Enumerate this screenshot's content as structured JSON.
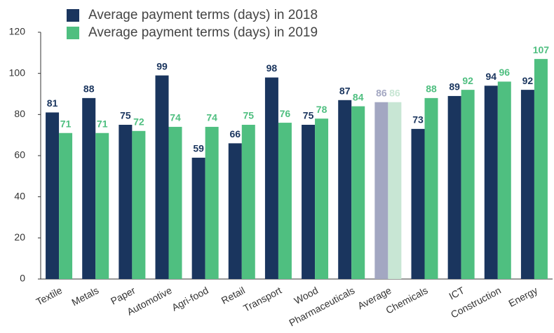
{
  "chart_data": {
    "type": "bar",
    "categories": [
      "Textile",
      "Metals",
      "Paper",
      "Automotive",
      "Agri-food",
      "Retail",
      "Transport",
      "Wood",
      "Pharmaceuticals",
      "Average",
      "Chemicals",
      "ICT",
      "Construction",
      "Energy"
    ],
    "series": [
      {
        "name": "Average payment terms (days) in 2018",
        "color": "#1a355e",
        "colors": [
          "#1a355e",
          "#1a355e",
          "#1a355e",
          "#1a355e",
          "#1a355e",
          "#1a355e",
          "#1a355e",
          "#1a355e",
          "#1a355e",
          "#a3a7c2",
          "#1a355e",
          "#1a355e",
          "#1a355e",
          "#1a355e"
        ],
        "values": [
          81,
          88,
          75,
          99,
          59,
          66,
          98,
          75,
          87,
          86,
          73,
          89,
          94,
          92
        ]
      },
      {
        "name": "Average payment terms (days) in 2019",
        "color": "#4fbf80",
        "colors": [
          "#4fbf80",
          "#4fbf80",
          "#4fbf80",
          "#4fbf80",
          "#4fbf80",
          "#4fbf80",
          "#4fbf80",
          "#4fbf80",
          "#4fbf80",
          "#c8e6d4",
          "#4fbf80",
          "#4fbf80",
          "#4fbf80",
          "#4fbf80"
        ],
        "values": [
          71,
          71,
          72,
          74,
          74,
          75,
          76,
          78,
          84,
          86,
          88,
          92,
          96,
          107
        ]
      }
    ],
    "ylim": [
      0,
      120
    ],
    "yticks": [
      0,
      20,
      40,
      60,
      80,
      100,
      120
    ],
    "grid": false,
    "legend": "top-left"
  }
}
